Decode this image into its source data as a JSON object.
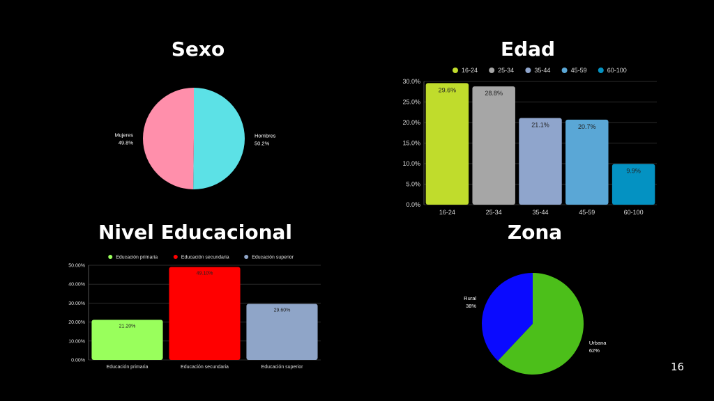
{
  "slide": {
    "page_number": "16"
  },
  "chart_data": [
    {
      "id": "sexo",
      "type": "pie",
      "title": "Sexo",
      "slices": [
        {
          "label": "Hombres",
          "value": 50.2,
          "value_label": "50.2%",
          "color": "#5ce1e6"
        },
        {
          "label": "Mujeres",
          "value": 49.8,
          "value_label": "49.8%",
          "color": "#ff8fab"
        }
      ]
    },
    {
      "id": "edad",
      "type": "bar",
      "title": "Edad",
      "categories": [
        "16-24",
        "25-34",
        "35-44",
        "45-59",
        "60-100"
      ],
      "values": [
        29.6,
        28.8,
        21.1,
        20.7,
        9.9
      ],
      "value_labels": [
        "29.6%",
        "28.8%",
        "21.1%",
        "20.7%",
        "9.9%"
      ],
      "colors": [
        "#c0dc2c",
        "#a6a6a6",
        "#8fa5cc",
        "#5aa7d6",
        "#0492c2"
      ],
      "legend": [
        "16-24",
        "25-34",
        "35-44",
        "45-59",
        "60-100"
      ],
      "legend_position": "top",
      "ylim": [
        0,
        30
      ],
      "yticks": [
        0,
        5,
        10,
        15,
        20,
        25,
        30
      ],
      "ytick_labels": [
        "0.0%",
        "5.0%",
        "10.0%",
        "15.0%",
        "20.0%",
        "25.0%",
        "30.0%"
      ],
      "grid": true
    },
    {
      "id": "nivel",
      "type": "bar",
      "title": "Nivel Educacional",
      "categories": [
        "Educación primaria",
        "Educación secundaria",
        "Educación superior"
      ],
      "values": [
        21.2,
        49.1,
        29.6
      ],
      "value_labels": [
        "21.20%",
        "49.10%",
        "29.60%"
      ],
      "colors": [
        "#99ff5c",
        "#ff0000",
        "#8fa5c8"
      ],
      "legend": [
        "Educación primaria",
        "Educación secundaria",
        "Educación superior"
      ],
      "legend_position": "top",
      "ylim": [
        0,
        50
      ],
      "yticks": [
        0,
        10,
        20,
        30,
        40,
        50
      ],
      "ytick_labels": [
        "0.00%",
        "10.00%",
        "20.00%",
        "30.00%",
        "40.00%",
        "50.00%"
      ],
      "grid": true
    },
    {
      "id": "zona",
      "type": "pie",
      "title": "Zona",
      "slices": [
        {
          "label": "Urbana",
          "value": 62,
          "value_label": "62%",
          "color": "#4cbf1a"
        },
        {
          "label": "Rural",
          "value": 38,
          "value_label": "38%",
          "color": "#0a0aff"
        }
      ]
    }
  ]
}
